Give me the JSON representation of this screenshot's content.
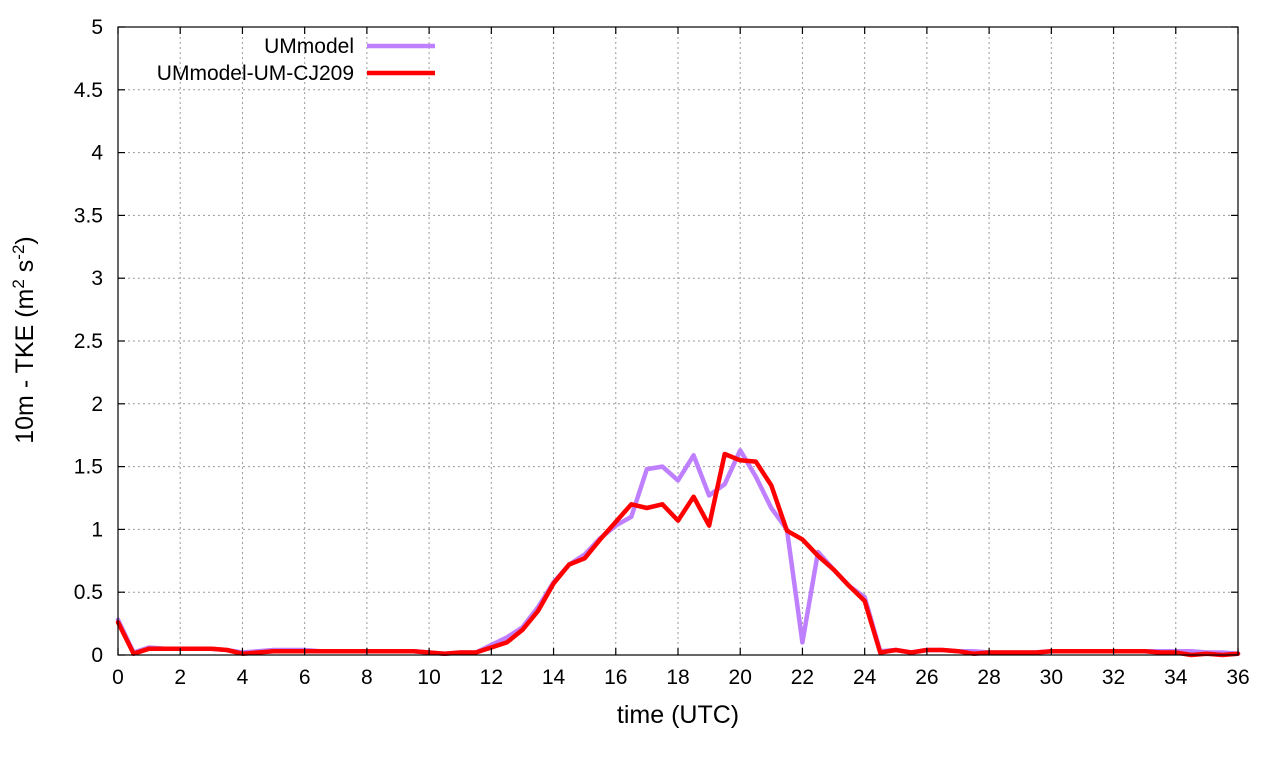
{
  "chart_data": {
    "type": "line",
    "xlabel": "time (UTC)",
    "ylabel": {
      "parts": [
        {
          "text": "10m - TKE (m",
          "sup": false
        },
        {
          "text": "2",
          "sup": true
        },
        {
          "text": " s",
          "sup": false
        },
        {
          "text": "-2",
          "sup": true
        },
        {
          "text": ")",
          "sup": false
        }
      ]
    },
    "xlim": [
      0,
      36
    ],
    "ylim": [
      0,
      5
    ],
    "xticks": [
      0,
      2,
      4,
      6,
      8,
      10,
      12,
      14,
      16,
      18,
      20,
      22,
      24,
      26,
      28,
      30,
      32,
      34,
      36
    ],
    "yticks": [
      0,
      0.5,
      1,
      1.5,
      2,
      2.5,
      3,
      3.5,
      4,
      4.5,
      5
    ],
    "grid": true,
    "legend_position": "top-left",
    "series": [
      {
        "name": "UMmodel",
        "color": "#bf80ff",
        "x": [
          0,
          0.5,
          1,
          1.5,
          2,
          2.5,
          3,
          3.5,
          4,
          4.5,
          5,
          5.5,
          6,
          6.5,
          7,
          7.5,
          8,
          8.5,
          9,
          9.5,
          10,
          10.5,
          11,
          11.5,
          12,
          12.5,
          13,
          13.5,
          14,
          14.5,
          15,
          15.5,
          16,
          16.5,
          17,
          17.5,
          18,
          18.5,
          19,
          19.5,
          20,
          20.5,
          21,
          21.5,
          22,
          22.5,
          23,
          23.5,
          24,
          24.5,
          25,
          25.5,
          26,
          26.5,
          27,
          27.5,
          28,
          28.5,
          29,
          29.5,
          30,
          30.5,
          31,
          31.5,
          32,
          32.5,
          33,
          33.5,
          34,
          34.5,
          35,
          35.5,
          36
        ],
        "y": [
          0.28,
          0.02,
          0.06,
          0.05,
          0.05,
          0.05,
          0.05,
          0.04,
          0.02,
          0.03,
          0.04,
          0.04,
          0.04,
          0.03,
          0.03,
          0.03,
          0.03,
          0.03,
          0.03,
          0.03,
          0.02,
          0.01,
          0.02,
          0.02,
          0.08,
          0.14,
          0.22,
          0.38,
          0.58,
          0.72,
          0.8,
          0.93,
          1.03,
          1.1,
          1.48,
          1.5,
          1.39,
          1.59,
          1.27,
          1.36,
          1.63,
          1.42,
          1.17,
          1.0,
          0.1,
          0.82,
          0.68,
          0.55,
          0.46,
          0.03,
          0.04,
          0.02,
          0.04,
          0.04,
          0.03,
          0.03,
          0.02,
          0.02,
          0.02,
          0.02,
          0.03,
          0.03,
          0.03,
          0.03,
          0.03,
          0.03,
          0.03,
          0.03,
          0.03,
          0.03,
          0.02,
          0.02,
          0.01
        ]
      },
      {
        "name": "UMmodel-UM-CJ209",
        "color": "#ff0000",
        "x": [
          0,
          0.5,
          1,
          1.5,
          2,
          2.5,
          3,
          3.5,
          4,
          4.5,
          5,
          5.5,
          6,
          6.5,
          7,
          7.5,
          8,
          8.5,
          9,
          9.5,
          10,
          10.5,
          11,
          11.5,
          12,
          12.5,
          13,
          13.5,
          14,
          14.5,
          15,
          15.5,
          16,
          16.5,
          17,
          17.5,
          18,
          18.5,
          19,
          19.5,
          20,
          20.5,
          21,
          21.5,
          22,
          22.5,
          23,
          23.5,
          24,
          24.5,
          25,
          25.5,
          26,
          26.5,
          27,
          27.5,
          28,
          28.5,
          29,
          29.5,
          30,
          30.5,
          31,
          31.5,
          32,
          32.5,
          33,
          33.5,
          34,
          34.5,
          35,
          35.5,
          36
        ],
        "y": [
          0.26,
          0.01,
          0.05,
          0.05,
          0.05,
          0.05,
          0.05,
          0.04,
          0.01,
          0.02,
          0.03,
          0.03,
          0.03,
          0.03,
          0.03,
          0.03,
          0.03,
          0.03,
          0.03,
          0.03,
          0.02,
          0.01,
          0.02,
          0.02,
          0.06,
          0.1,
          0.2,
          0.35,
          0.57,
          0.72,
          0.77,
          0.92,
          1.06,
          1.2,
          1.17,
          1.2,
          1.07,
          1.26,
          1.03,
          1.6,
          1.55,
          1.54,
          1.35,
          0.99,
          0.92,
          0.79,
          0.68,
          0.55,
          0.43,
          0.02,
          0.04,
          0.02,
          0.04,
          0.04,
          0.03,
          0.01,
          0.02,
          0.02,
          0.02,
          0.02,
          0.03,
          0.03,
          0.03,
          0.03,
          0.03,
          0.03,
          0.03,
          0.02,
          0.02,
          0.0,
          0.01,
          0.0,
          0.01
        ]
      }
    ]
  }
}
